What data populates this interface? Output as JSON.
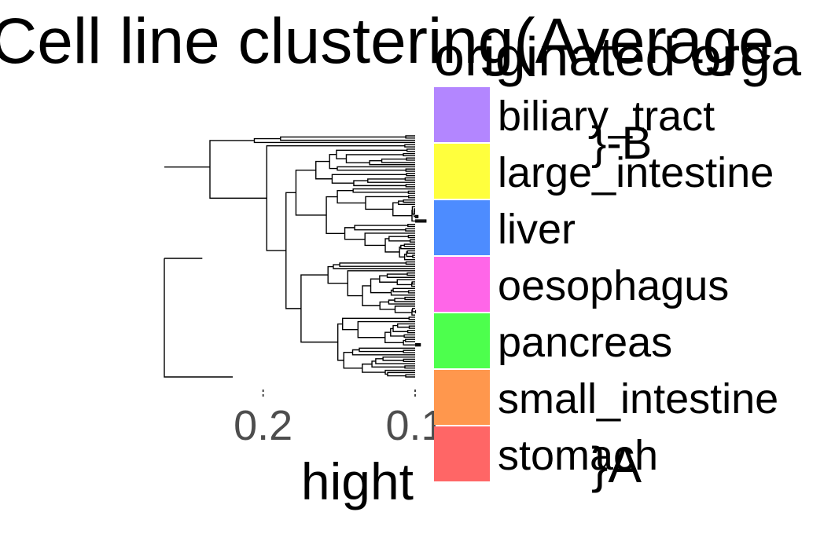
{
  "chart_data": {
    "type": "dendrogram",
    "title": "Cell line clustering(Average",
    "xlabel": "hight",
    "xlim": [
      0.28,
      0.1
    ],
    "x_ticks": [
      {
        "value": 0.2,
        "label": "0.2"
      },
      {
        "value": 0.1,
        "label": "0.1"
      }
    ],
    "legend": {
      "title": "originated orga",
      "position": "right",
      "entries": [
        {
          "label": "biliary_tract",
          "color": "#B386FF"
        },
        {
          "label": "large_intestine",
          "color": "#FFFF3D"
        },
        {
          "label": "liver",
          "color": "#4D8CFF"
        },
        {
          "label": "oesophagus",
          "color": "#FF66E8"
        },
        {
          "label": "pancreas",
          "color": "#4DFF4D"
        },
        {
          "label": "small_intestine",
          "color": "#FF974D"
        },
        {
          "label": "stomach",
          "color": "#FF6666"
        }
      ]
    },
    "annotations": [
      {
        "label": "}-B"
      },
      {
        "label": "}A"
      }
    ],
    "leaf_count": 110,
    "leaf_height": 0.1,
    "root_height": 0.265
  }
}
